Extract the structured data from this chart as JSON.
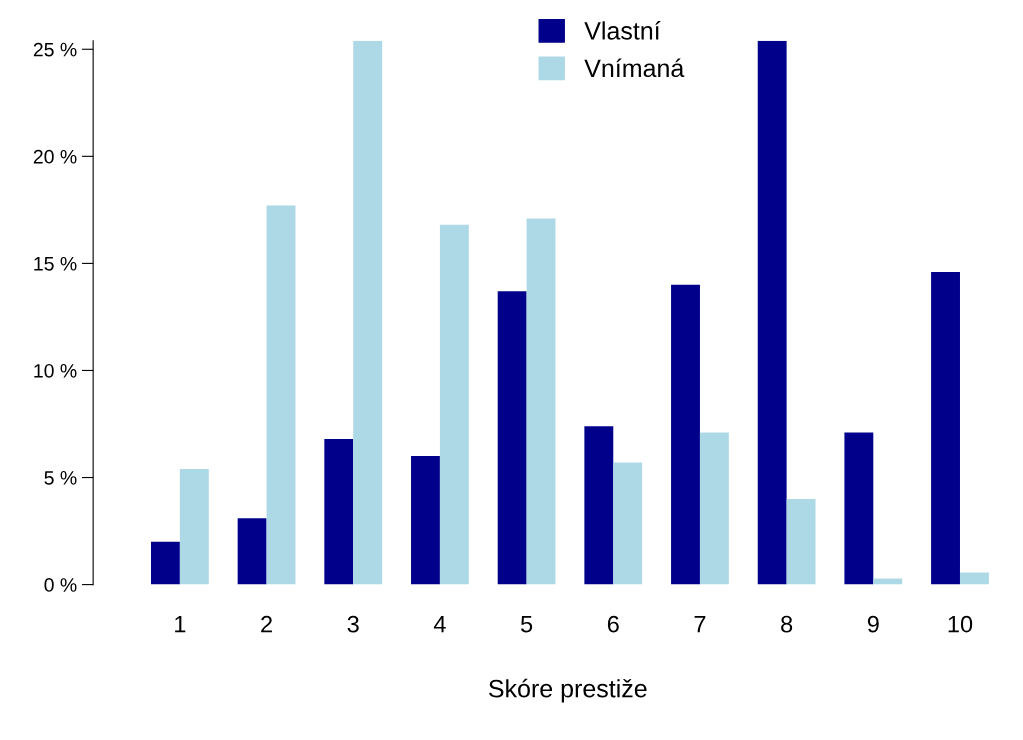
{
  "chart_data": {
    "type": "bar",
    "xlabel": "Skóre prestiže",
    "categories": [
      "1",
      "2",
      "3",
      "4",
      "5",
      "6",
      "7",
      "8",
      "9",
      "10"
    ],
    "series": [
      {
        "name": "Vlastní",
        "color": "#00008b",
        "values": [
          2.0,
          3.1,
          6.8,
          6.0,
          13.7,
          7.4,
          14.0,
          25.4,
          7.1,
          14.6
        ]
      },
      {
        "name": "Vnímaná",
        "color": "#add8e6",
        "values": [
          5.4,
          17.7,
          25.4,
          16.8,
          17.1,
          5.7,
          7.1,
          4.0,
          0.28,
          0.57
        ]
      }
    ],
    "ylim": [
      0,
      25.4
    ],
    "yticks": [
      {
        "value": 0,
        "label": "0 %"
      },
      {
        "value": 5,
        "label": "5 %"
      },
      {
        "value": 10,
        "label": "10 %"
      },
      {
        "value": 15,
        "label": "15 %"
      },
      {
        "value": 20,
        "label": "20 %"
      },
      {
        "value": 25,
        "label": "25 %"
      }
    ],
    "legend": "top",
    "grid": false
  }
}
